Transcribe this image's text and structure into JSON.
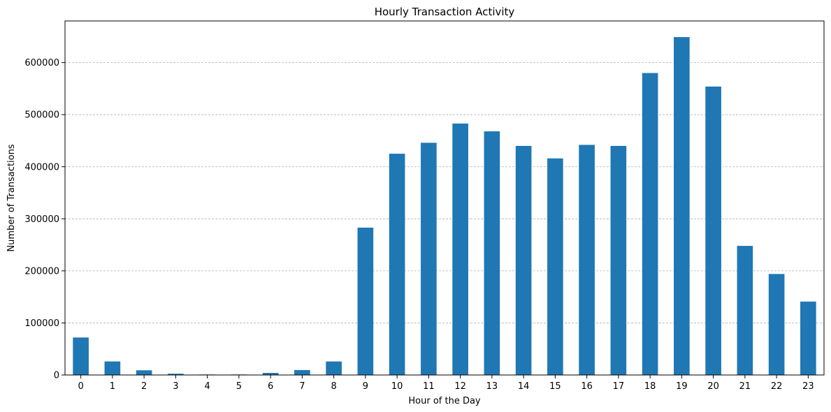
{
  "chart_data": {
    "type": "bar",
    "title": "Hourly Transaction Activity",
    "xlabel": "Hour of the Day",
    "ylabel": "Number of Transactions",
    "categories": [
      "0",
      "1",
      "2",
      "3",
      "4",
      "5",
      "6",
      "7",
      "8",
      "9",
      "10",
      "11",
      "12",
      "13",
      "14",
      "15",
      "16",
      "17",
      "18",
      "19",
      "20",
      "21",
      "22",
      "23"
    ],
    "values": [
      72000,
      26000,
      9000,
      2500,
      1000,
      1000,
      4000,
      9500,
      26000,
      283000,
      425000,
      446000,
      483000,
      468000,
      440000,
      416000,
      442000,
      440000,
      580000,
      649000,
      554000,
      248000,
      194000,
      141000
    ],
    "ylim": [
      0,
      680000
    ],
    "yticks": [
      0,
      100000,
      200000,
      300000,
      400000,
      500000,
      600000
    ],
    "ytick_labels": [
      "0",
      "100000",
      "200000",
      "300000",
      "400000",
      "500000",
      "600000"
    ],
    "bar_color": "#1f77b4",
    "grid": "y-dashed",
    "legend": "none"
  }
}
